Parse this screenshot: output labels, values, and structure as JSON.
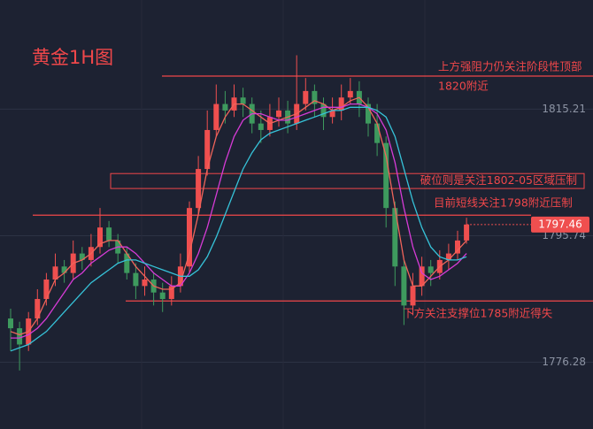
{
  "chart_data": {
    "type": "candlestick",
    "title": "黄金1H图",
    "open": [
      1783,
      1781.5,
      1779,
      1783,
      1786,
      1789,
      1791,
      1790,
      1793,
      1792,
      1794,
      1797,
      1795,
      1793,
      1790,
      1788,
      1789,
      1787,
      1786,
      1788,
      1791,
      1800,
      1806,
      1812,
      1816,
      1815,
      1817,
      1816,
      1813,
      1812,
      1814,
      1815,
      1813,
      1816,
      1818,
      1816,
      1814,
      1815,
      1817,
      1818,
      1816,
      1813,
      1810,
      1800,
      1791,
      1785,
      1788,
      1791,
      1790,
      1792,
      1793,
      1795
    ],
    "high": [
      1784.5,
      1782.5,
      1784,
      1787.5,
      1790,
      1793,
      1792,
      1795,
      1794,
      1796,
      1800,
      1798,
      1796,
      1794,
      1791.5,
      1791,
      1790,
      1788.5,
      1789.5,
      1793,
      1801,
      1808,
      1815,
      1819,
      1818,
      1819,
      1818.5,
      1817,
      1815,
      1816,
      1817,
      1816.5,
      1823.5,
      1820,
      1819,
      1817,
      1817,
      1819,
      1820,
      1819.5,
      1817,
      1816,
      1811,
      1801,
      1792,
      1790,
      1792.5,
      1792,
      1793.5,
      1794.5,
      1796.5,
      1798.5
    ],
    "low": [
      1778,
      1775,
      1778,
      1782,
      1785,
      1788,
      1788.5,
      1789,
      1790.5,
      1791,
      1793,
      1794,
      1791.5,
      1789,
      1786,
      1786.5,
      1785,
      1784,
      1785,
      1787,
      1790,
      1799,
      1805,
      1811,
      1813,
      1814,
      1814,
      1811.5,
      1810,
      1811,
      1812.5,
      1811.5,
      1812,
      1815,
      1814,
      1812,
      1813,
      1813.5,
      1816,
      1814,
      1811,
      1808,
      1797,
      1788,
      1782,
      1783.5,
      1786.5,
      1788,
      1789,
      1790.5,
      1792,
      1794.5
    ],
    "close": [
      1781.5,
      1779,
      1783,
      1786,
      1789,
      1791,
      1790,
      1793,
      1792,
      1794,
      1797,
      1795,
      1793,
      1790,
      1788,
      1789,
      1787,
      1786,
      1788,
      1791,
      1800,
      1806,
      1812,
      1816,
      1815,
      1817,
      1816,
      1813,
      1812,
      1814,
      1815,
      1813,
      1816,
      1818,
      1816,
      1814,
      1815,
      1817,
      1818,
      1816,
      1813,
      1810,
      1800,
      1791,
      1785,
      1788,
      1791,
      1790,
      1792,
      1793,
      1795,
      1797.46
    ],
    "up_color": "#ef4f4f",
    "down_color": "#3e9a5e",
    "series": [
      {
        "color": "#f0645a",
        "values": [
          1781,
          1780.5,
          1781,
          1783,
          1786,
          1789,
          1790,
          1791.5,
          1792,
          1793,
          1794.5,
          1795,
          1795,
          1793,
          1791,
          1789.5,
          1788,
          1787.5,
          1787.5,
          1788.5,
          1793,
          1799,
          1806,
          1811,
          1814,
          1816,
          1816,
          1815,
          1814,
          1813,
          1813.5,
          1814,
          1814.5,
          1815.5,
          1816.5,
          1816,
          1815,
          1815.5,
          1816.5,
          1817,
          1815.5,
          1813,
          1808,
          1800,
          1792,
          1788,
          1788,
          1789.5,
          1791,
          1792,
          1793.5,
          1795
        ]
      },
      {
        "color": "#d63bd6",
        "values": [
          1780,
          1780,
          1780.5,
          1781.5,
          1783,
          1785,
          1787,
          1789,
          1790,
          1791.5,
          1792.5,
          1793.5,
          1794,
          1794,
          1793,
          1791.5,
          1790,
          1789,
          1788,
          1788,
          1790,
          1793,
          1797,
          1802,
          1807,
          1811,
          1813.5,
          1814.5,
          1814.5,
          1814,
          1813.5,
          1813.5,
          1814,
          1814.5,
          1815,
          1815.5,
          1815.5,
          1815.5,
          1816,
          1816,
          1815.5,
          1814.5,
          1812,
          1807,
          1800,
          1794,
          1790,
          1789,
          1789.5,
          1790.5,
          1791.5,
          1793
        ]
      },
      {
        "color": "#36c2d8",
        "values": [
          1778,
          1778.5,
          1779,
          1780,
          1781,
          1782.5,
          1784,
          1785.5,
          1787,
          1788.5,
          1789.5,
          1790.5,
          1791.5,
          1792,
          1792,
          1791.5,
          1791,
          1790.5,
          1790,
          1789.5,
          1789.5,
          1790.5,
          1792.5,
          1795.5,
          1799,
          1802.5,
          1806,
          1808.5,
          1810.5,
          1811.5,
          1812,
          1812.5,
          1813,
          1813.5,
          1814,
          1814.5,
          1815,
          1815,
          1815.5,
          1815.5,
          1815.5,
          1815,
          1814,
          1811,
          1806,
          1801,
          1797,
          1794,
          1792.5,
          1792,
          1792,
          1792.5
        ]
      }
    ],
    "ylim": [
      1766,
      1832
    ],
    "yticks": [
      1815.21,
      1795.74,
      1776.28
    ],
    "grid": true,
    "annotations": [
      {
        "lines": [
          "上方强阻力仍关注阶段性顶部",
          "1820附近"
        ],
        "level": 1820.3
      },
      {
        "lines": [
          "破位则是关注1802-05区域压制"
        ],
        "range": [
          1803,
          1805.3
        ]
      },
      {
        "lines": [
          "目前短线关注1798附近压制"
        ],
        "level": 1798.9
      },
      {
        "lines": [
          "下方关注支撑位1785附近得失"
        ],
        "level": 1785.7
      }
    ]
  }
}
